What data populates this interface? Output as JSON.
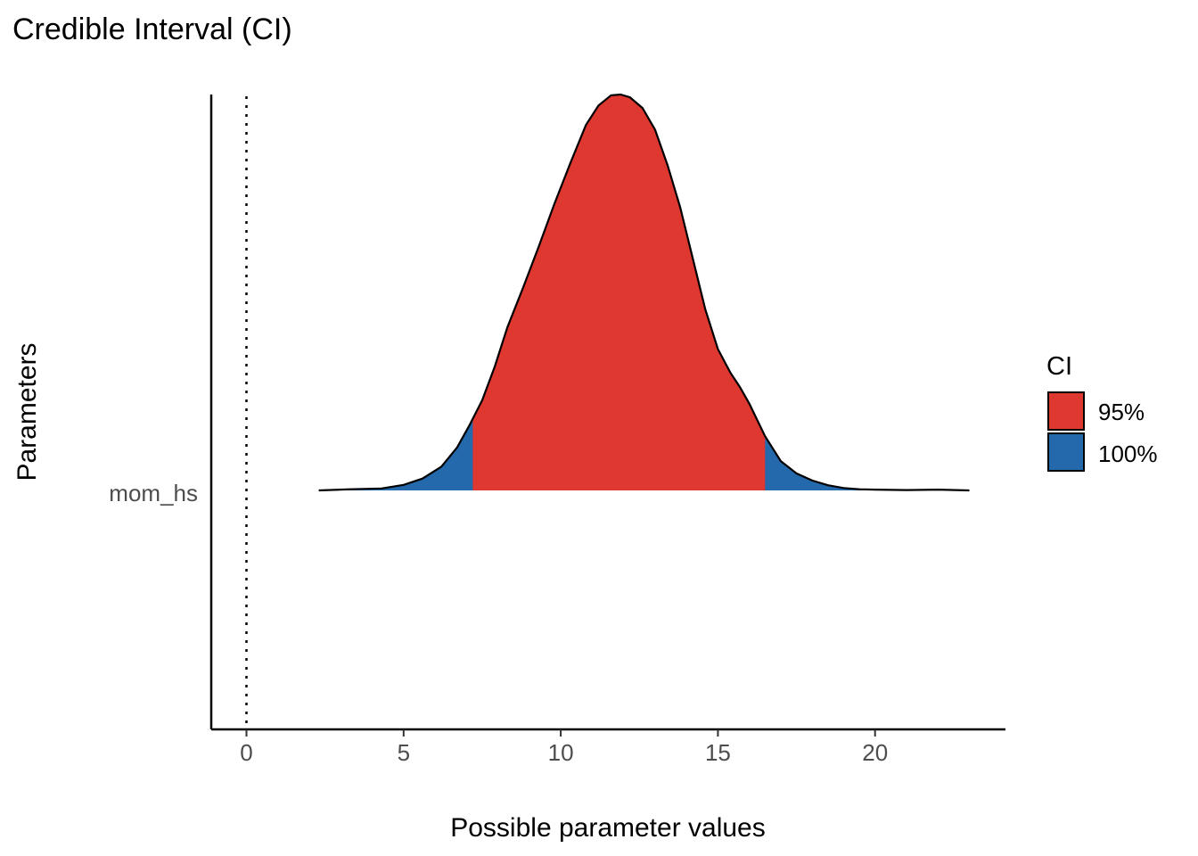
{
  "chart_data": {
    "type": "area",
    "title": "Credible Interval (CI)",
    "xlabel": "Possible parameter values",
    "ylabel": "Parameters",
    "parameter": "mom_hs",
    "xlim": [
      -1.1,
      24.2
    ],
    "x_ticks": [
      0,
      5,
      10,
      15,
      20
    ],
    "x_tick_labels": [
      "0",
      "5",
      "10",
      "15",
      "20"
    ],
    "reference_line_x": 0,
    "density": {
      "x": [
        2.3,
        3.3,
        4.3,
        5.0,
        5.6,
        6.2,
        6.7,
        7.1,
        7.5,
        7.9,
        8.3,
        8.8,
        9.3,
        9.8,
        10.3,
        10.8,
        11.2,
        11.6,
        11.9,
        12.2,
        12.6,
        13.0,
        13.4,
        13.8,
        14.2,
        14.6,
        15.0,
        15.4,
        15.7,
        16.0,
        16.5,
        17.0,
        17.5,
        18.0,
        18.5,
        19.0,
        19.5,
        20.0,
        21.0,
        22.0,
        23.0
      ],
      "y": [
        0.0,
        0.003,
        0.005,
        0.014,
        0.03,
        0.06,
        0.108,
        0.165,
        0.228,
        0.313,
        0.412,
        0.512,
        0.616,
        0.724,
        0.826,
        0.923,
        0.972,
        0.998,
        1.0,
        0.993,
        0.966,
        0.911,
        0.821,
        0.715,
        0.586,
        0.457,
        0.357,
        0.297,
        0.261,
        0.219,
        0.137,
        0.074,
        0.043,
        0.025,
        0.013,
        0.006,
        0.003,
        0.002,
        0.001,
        0.002,
        0.0
      ]
    },
    "intervals": [
      {
        "name": "95%",
        "low": 7.2,
        "high": 16.5,
        "color": "#de3830"
      },
      {
        "name": "100%",
        "low": 2.3,
        "high": 23.0,
        "color": "#2369ab"
      }
    ],
    "legend": {
      "title": "CI",
      "position": "right"
    }
  }
}
